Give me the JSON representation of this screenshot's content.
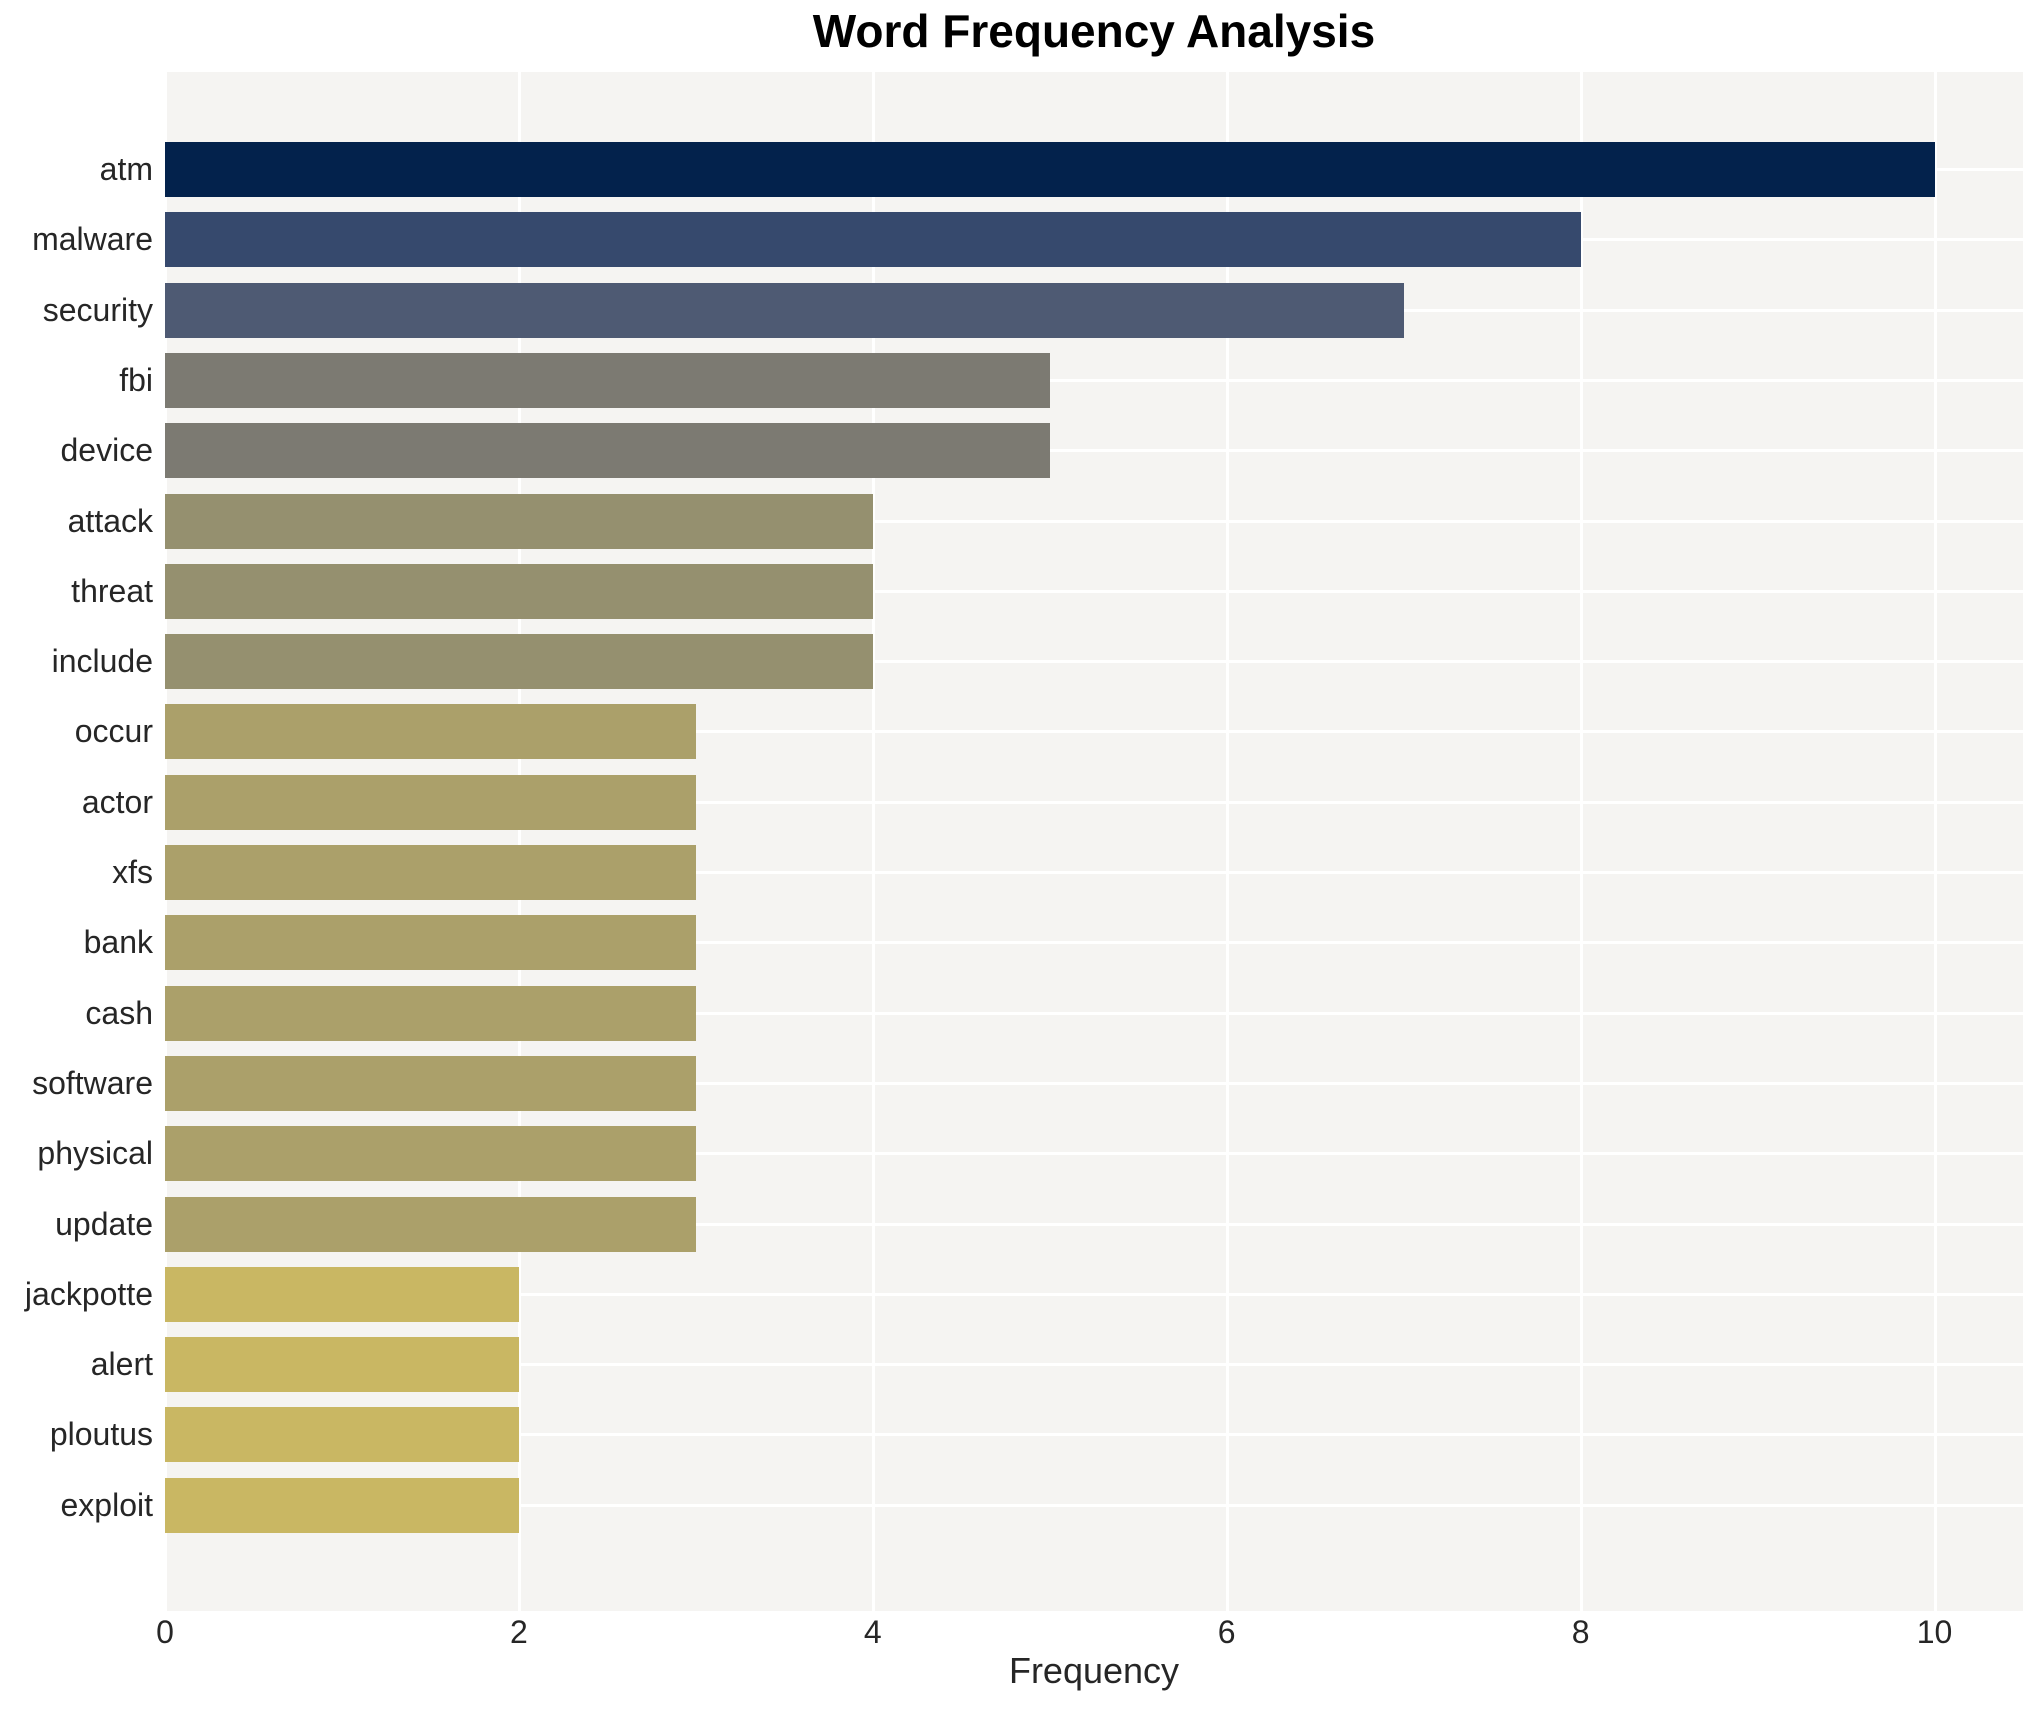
{
  "title": "Word Frequency Analysis",
  "chart_data": {
    "type": "bar",
    "orientation": "horizontal",
    "title": "Word Frequency Analysis",
    "xlabel": "Frequency",
    "ylabel": "",
    "categories": [
      "atm",
      "malware",
      "security",
      "fbi",
      "device",
      "attack",
      "threat",
      "include",
      "occur",
      "actor",
      "xfs",
      "bank",
      "cash",
      "software",
      "physical",
      "update",
      "jackpotte",
      "alert",
      "ploutus",
      "exploit"
    ],
    "values": [
      10,
      8,
      7,
      5,
      5,
      4,
      4,
      4,
      3,
      3,
      3,
      3,
      3,
      3,
      3,
      3,
      2,
      2,
      2,
      2
    ],
    "bar_colors": [
      "#03224c",
      "#36496d",
      "#4e5a73",
      "#7c7a72",
      "#7c7a72",
      "#95906f",
      "#95906f",
      "#95906f",
      "#aba06a",
      "#aba06a",
      "#aba06a",
      "#aba06a",
      "#aba06a",
      "#aba06a",
      "#aba06a",
      "#aba06a",
      "#c9b763",
      "#c9b763",
      "#c9b763",
      "#c9b763"
    ],
    "xlim": [
      0,
      10.5
    ],
    "xticks": [
      0,
      2,
      4,
      6,
      8,
      10
    ],
    "grid": true,
    "legend": false
  },
  "style": {
    "figure_bg": "#ffffff",
    "plot_bg": "#f5f4f2",
    "grid_color": "#ffffff",
    "tick_color": "#262626",
    "title_color": "#000000"
  }
}
